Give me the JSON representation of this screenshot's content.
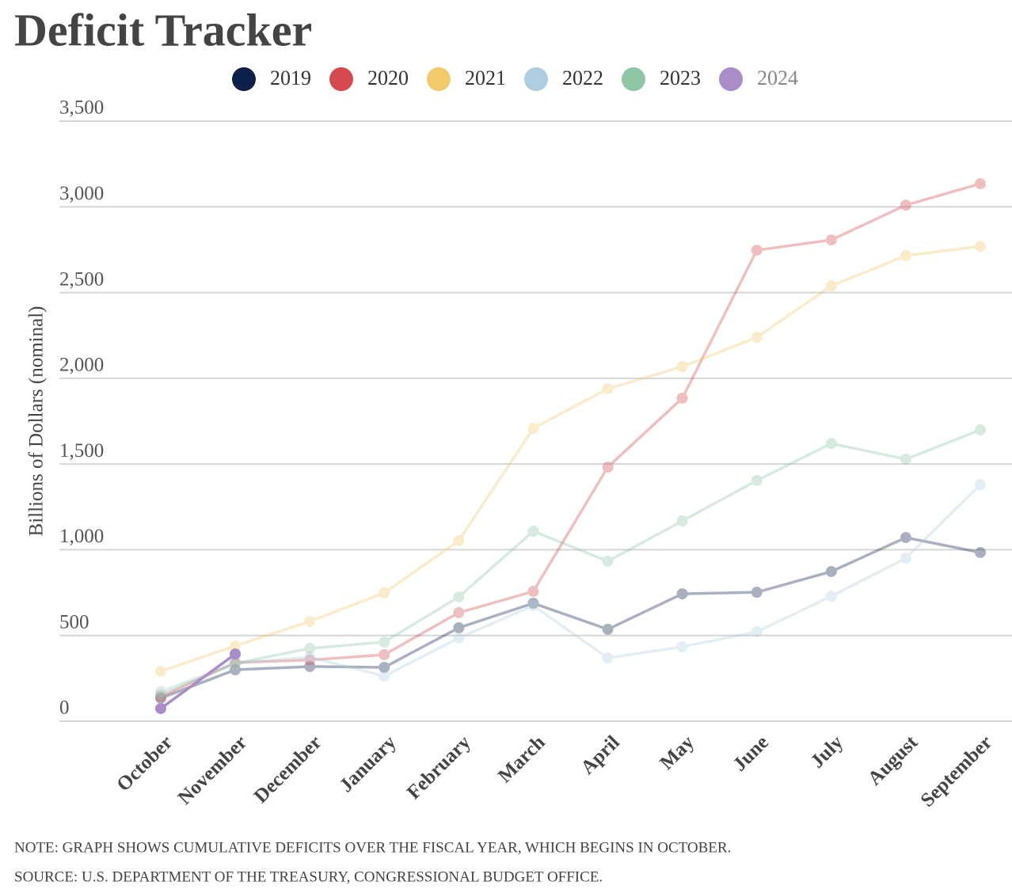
{
  "chart_data": {
    "type": "line",
    "title": "Deficit Tracker",
    "y_label": "Billions of Dollars (nominal)",
    "categories": [
      "October",
      "November",
      "December",
      "January",
      "February",
      "March",
      "April",
      "May",
      "June",
      "July",
      "August",
      "September"
    ],
    "series": [
      {
        "name": "2019",
        "color": "#0b1f4b",
        "values": [
          134,
          300,
          319,
          314,
          545,
          688,
          536,
          743,
          752,
          873,
          1071,
          984
        ]
      },
      {
        "name": "2020",
        "color": "#d44a4e",
        "values": [
          143,
          342,
          357,
          388,
          633,
          757,
          1482,
          1884,
          2747,
          2807,
          3010,
          3135
        ]
      },
      {
        "name": "2021",
        "color": "#f2ca6b",
        "values": [
          291,
          439,
          582,
          748,
          1053,
          1708,
          1939,
          2068,
          2239,
          2539,
          2715,
          2770
        ]
      },
      {
        "name": "2022",
        "color": "#aecde0",
        "values": [
          175,
          337,
          374,
          263,
          485,
          674,
          369,
          434,
          522,
          729,
          951,
          1380
        ]
      },
      {
        "name": "2023",
        "color": "#8ec6a3",
        "values": [
          157,
          337,
          425,
          462,
          725,
          1108,
          933,
          1168,
          1404,
          1620,
          1528,
          1699
        ]
      },
      {
        "name": "2024",
        "color": "#a98cc9",
        "values": [
          74,
          392,
          null,
          null,
          null,
          null,
          null,
          null,
          null,
          null,
          null,
          null
        ]
      }
    ],
    "ylim": [
      0,
      3500
    ],
    "yticks": [
      0,
      500,
      {
        "value": 1000,
        "label": "1,000"
      },
      {
        "value": 1500,
        "label": "1,500"
      },
      {
        "value": 2000,
        "label": "2,000"
      },
      {
        "value": 2500,
        "label": "2,500"
      },
      {
        "value": 3000,
        "label": "3,000"
      },
      {
        "value": 3500,
        "label": "3,500"
      }
    ],
    "grid": true,
    "notes": [
      "NOTE: GRAPH SHOWS CUMULATIVE DEFICITS OVER THE FISCAL YEAR, WHICH BEGINS IN OCTOBER.",
      "SOURCE: U.S. DEPARTMENT OF THE TREASURY, CONGRESSIONAL BUDGET OFFICE."
    ]
  }
}
